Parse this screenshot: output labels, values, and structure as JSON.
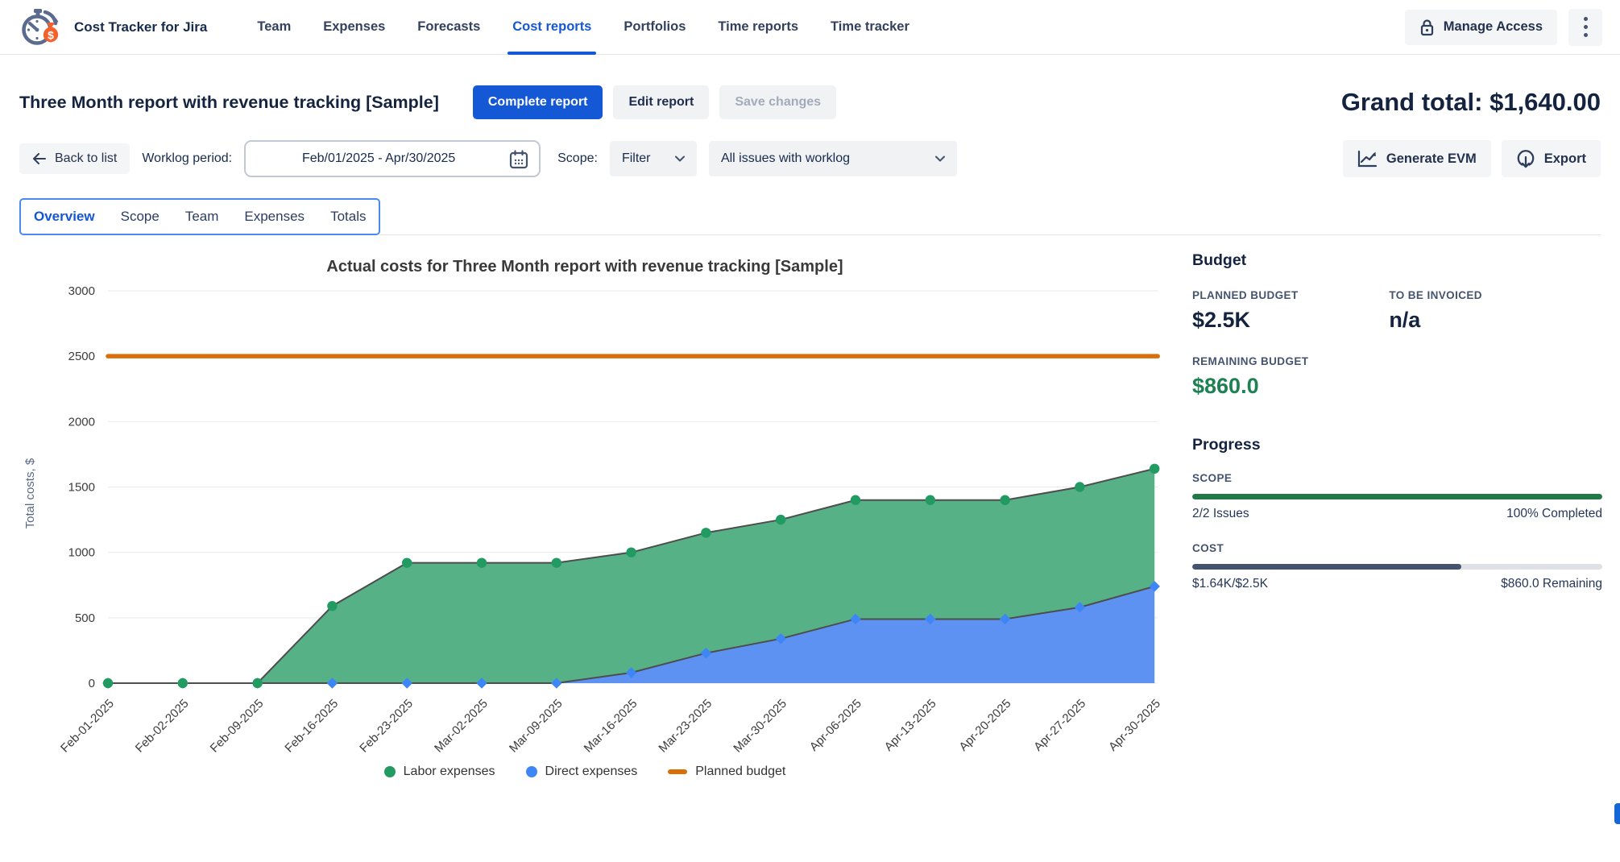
{
  "nav": {
    "brand": "Cost Tracker for Jira",
    "items": [
      "Team",
      "Expenses",
      "Forecasts",
      "Cost reports",
      "Portfolios",
      "Time reports",
      "Time tracker"
    ],
    "active_item": "Cost reports",
    "manage_access_label": "Manage Access"
  },
  "header": {
    "report_title": "Three Month report with revenue tracking [Sample]",
    "complete_report_label": "Complete report",
    "edit_report_label": "Edit report",
    "save_changes_label": "Save changes",
    "grand_total": "Grand total: $1,640.00"
  },
  "toolbar": {
    "back_label": "Back to list",
    "worklog_period_label": "Worklog period:",
    "worklog_period_value": "Feb/01/2025 - Apr/30/2025",
    "scope_label": "Scope:",
    "filter_value": "Filter",
    "scope_value": "All issues with worklog",
    "generate_evm_label": "Generate EVM",
    "export_label": "Export"
  },
  "tabs": {
    "items": [
      "Overview",
      "Scope",
      "Team",
      "Expenses",
      "Totals"
    ],
    "active": "Overview"
  },
  "chart_data": {
    "type": "area",
    "title": "Actual costs for Three Month report with revenue tracking [Sample]",
    "ylabel": "Total costs, $",
    "ylim": [
      0,
      3000
    ],
    "ytick_interval": 500,
    "grid": true,
    "legend_position": "bottom",
    "categories": [
      "Feb-01-2025",
      "Feb-02-2025",
      "Feb-09-2025",
      "Feb-16-2025",
      "Feb-23-2025",
      "Mar-02-2025",
      "Mar-09-2025",
      "Mar-16-2025",
      "Mar-23-2025",
      "Mar-30-2025",
      "Apr-06-2025",
      "Apr-13-2025",
      "Apr-20-2025",
      "Apr-27-2025",
      "Apr-30-2025"
    ],
    "series": [
      {
        "name": "Labor expenses",
        "marker": "circle",
        "marker_color": "#219b62",
        "fill_color": "#57b186",
        "line_values": [
          0,
          0,
          0,
          590,
          920,
          920,
          920,
          1000,
          1150,
          1250,
          1400,
          1400,
          1400,
          1500,
          1640
        ],
        "note": "top boundary of stacked area = cumulative total (labor + direct)"
      },
      {
        "name": "Direct expenses",
        "marker": "diamond",
        "marker_color": "#3e86f5",
        "fill_color": "#5d92f2",
        "line_values": [
          0,
          0,
          0,
          0,
          0,
          0,
          0,
          80,
          230,
          340,
          490,
          490,
          490,
          580,
          740
        ]
      }
    ],
    "planned_budget": {
      "name": "Planned budget",
      "value": 2500,
      "color": "#d96f08"
    },
    "line_color": "#4d4d4d",
    "grid_color": "#e8e9eb"
  },
  "budget": {
    "heading": "Budget",
    "planned_budget_label": "PLANNED BUDGET",
    "planned_budget_value": "$2.5K",
    "to_be_invoiced_label": "TO BE INVOICED",
    "to_be_invoiced_value": "n/a",
    "remaining_budget_label": "REMAINING BUDGET",
    "remaining_budget_value": "$860.0"
  },
  "progress": {
    "heading": "Progress",
    "scope_label": "SCOPE",
    "scope_percent": 100,
    "scope_left": "2/2 Issues",
    "scope_right": "100% Completed",
    "cost_label": "COST",
    "cost_percent": 65.6,
    "cost_left": "$1.64K/$2.5K",
    "cost_right": "$860.0 Remaining"
  }
}
